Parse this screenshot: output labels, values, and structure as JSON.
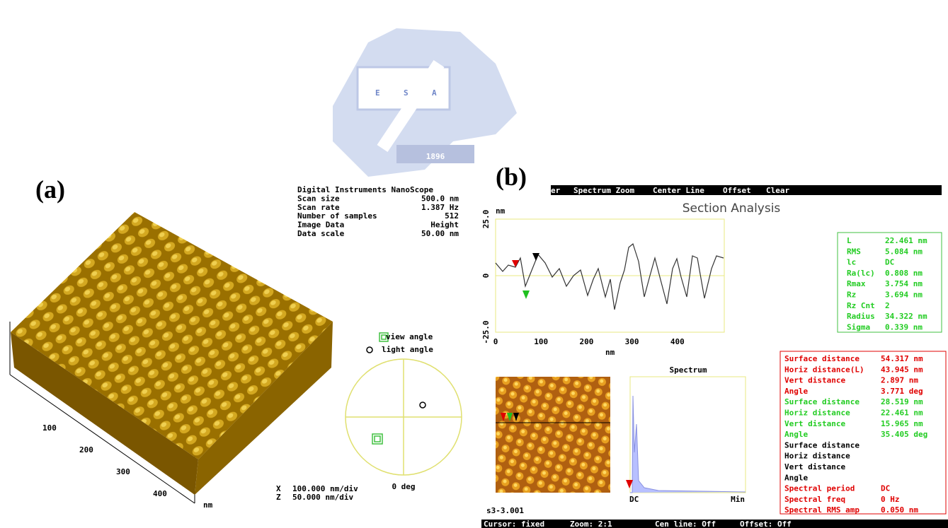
{
  "logo": {
    "letters": [
      "E",
      "S",
      "A"
    ],
    "year": "1896"
  },
  "panel_a": {
    "label": "(a)",
    "info": [
      [
        "Digital Instruments NanoScope",
        ""
      ],
      [
        "Scan size",
        "500.0 nm"
      ],
      [
        "Scan rate",
        "1.387 Hz"
      ],
      [
        "Number of samples",
        "512"
      ],
      [
        "Image Data",
        "Height"
      ],
      [
        "Data scale",
        "50.00 nm"
      ]
    ],
    "axis_ticks": [
      "100",
      "200",
      "300",
      "400"
    ],
    "axis_unit": "nm",
    "legend": [
      "view angle",
      "light angle"
    ],
    "angle": "0 deg",
    "scales": [
      [
        "X",
        "100.000 nm/div"
      ],
      [
        "Z",
        "50.000 nm/div"
      ]
    ]
  },
  "panel_b": {
    "label": "(b)",
    "menu": [
      "er",
      "Spectrum Zoom",
      "Center Line",
      "Offset",
      "Clear"
    ],
    "title": "Section Analysis",
    "plot": {
      "y_unit": "nm",
      "yticks": [
        "25.0",
        "0",
        "-25.0"
      ],
      "xticks": [
        "0",
        "100",
        "200",
        "300",
        "400"
      ],
      "x_unit": "nm"
    },
    "stats": [
      [
        "L",
        "22.461 nm"
      ],
      [
        "RMS",
        "5.084 nm"
      ],
      [
        "lc",
        "DC"
      ],
      [
        "Ra(lc)",
        "0.808 nm"
      ],
      [
        "Rmax",
        "3.754 nm"
      ],
      [
        "Rz",
        "3.694 nm"
      ],
      [
        "Rz Cnt",
        "2"
      ],
      [
        "Radius",
        "34.322 nm"
      ],
      [
        "Sigma",
        "0.339 nm"
      ]
    ],
    "spectrum_title": "Spectrum",
    "spectrum_x": [
      "DC",
      "Min"
    ],
    "measures": [
      {
        "name": "Surface distance",
        "value": "54.317 nm",
        "color": "#e00000"
      },
      {
        "name": "Horiz distance(L)",
        "value": "43.945 nm",
        "color": "#e00000"
      },
      {
        "name": "Vert distance",
        "value": "2.897 nm",
        "color": "#e00000"
      },
      {
        "name": "Angle",
        "value": "3.771 deg",
        "color": "#e00000"
      },
      {
        "name": "Surface distance",
        "value": "28.519 nm",
        "color": "#22cc22"
      },
      {
        "name": "Horiz distance",
        "value": "22.461 nm",
        "color": "#22cc22"
      },
      {
        "name": "Vert distance",
        "value": "15.965 nm",
        "color": "#22cc22"
      },
      {
        "name": "Angle",
        "value": "35.405 deg",
        "color": "#22cc22"
      },
      {
        "name": "Surface distance",
        "value": "",
        "color": "#000000"
      },
      {
        "name": "Horiz distance",
        "value": "",
        "color": "#000000"
      },
      {
        "name": "Vert distance",
        "value": "",
        "color": "#000000"
      },
      {
        "name": "Angle",
        "value": "",
        "color": "#000000"
      },
      {
        "name": "Spectral period",
        "value": "DC",
        "color": "#e00000"
      },
      {
        "name": "Spectral freq",
        "value": "0 Hz",
        "color": "#e00000"
      },
      {
        "name": "Spectral RMS amp",
        "value": "0.050 nm",
        "color": "#e00000"
      }
    ],
    "filename": "s3-3.001",
    "status": [
      "Cursor: fixed",
      "Zoom: 2:1",
      "Cen line: Off",
      "Offset: Off"
    ]
  }
}
